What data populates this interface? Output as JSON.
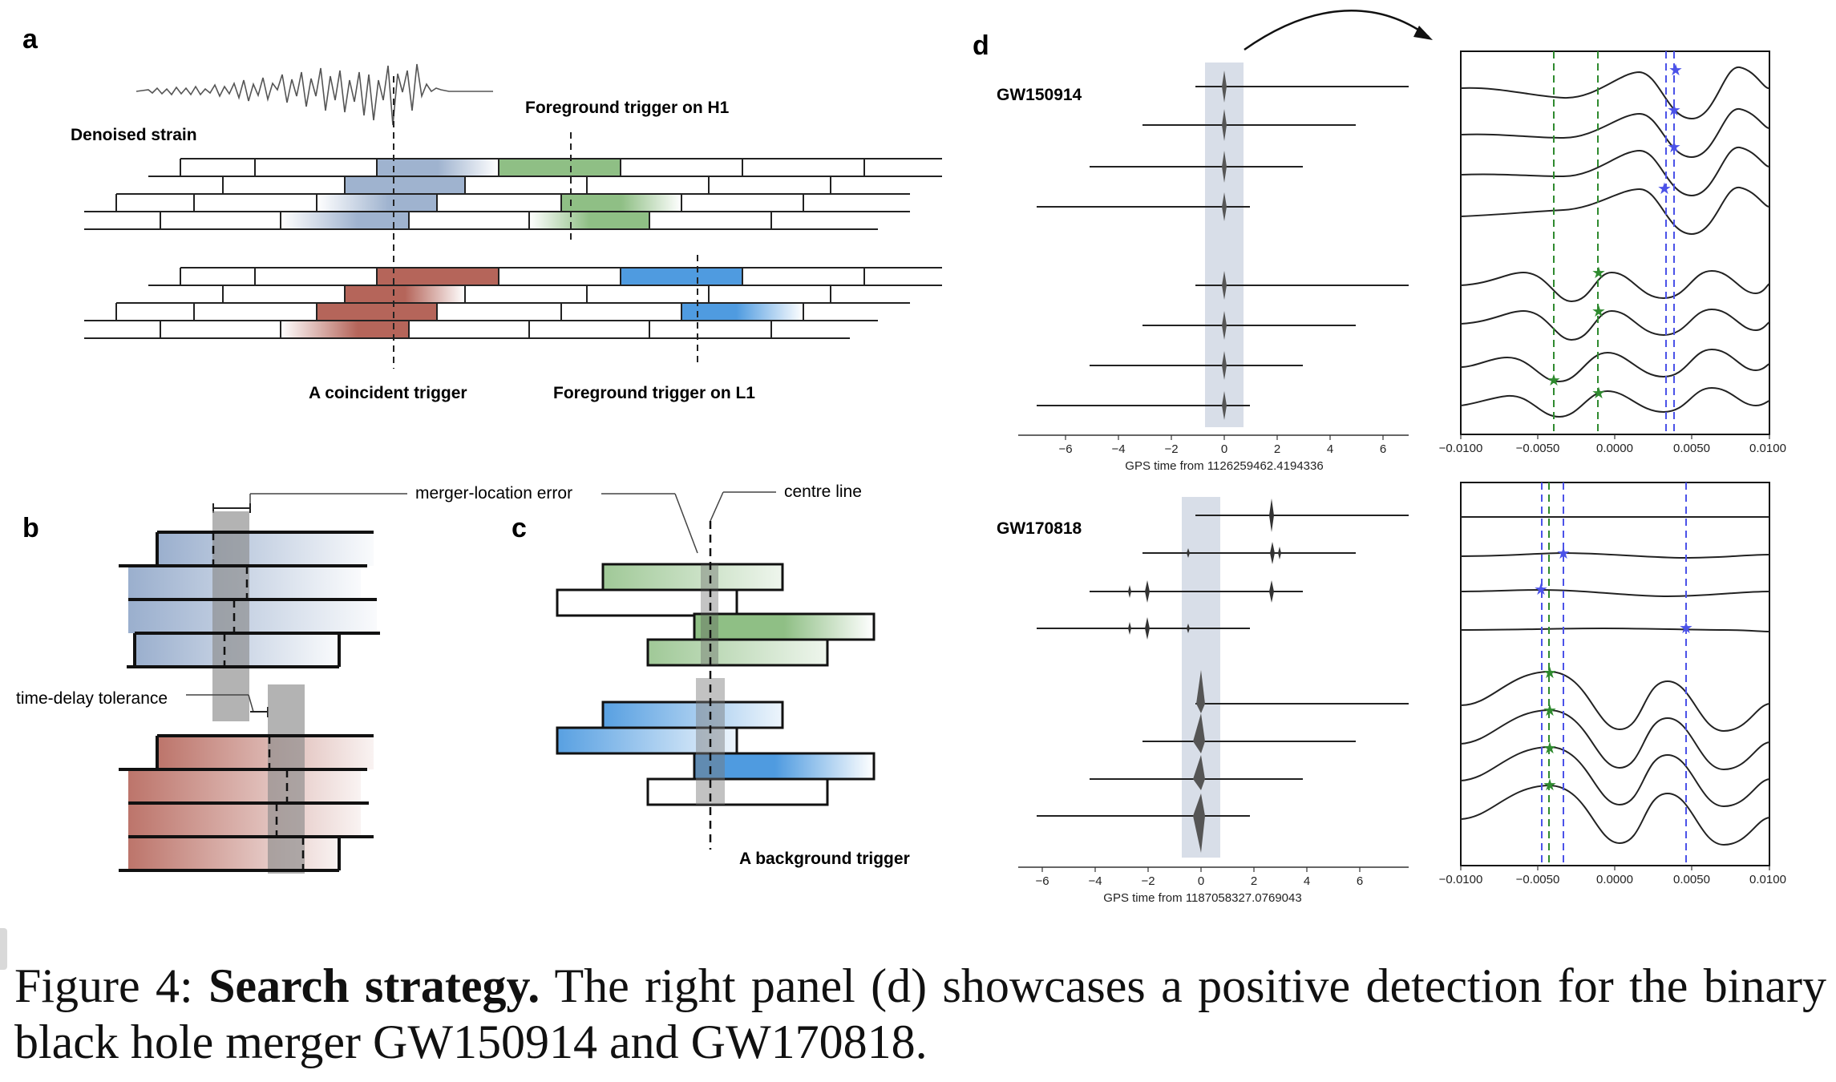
{
  "panels": {
    "a": {
      "letter": "a",
      "denoised_strain": "Denoised strain",
      "foreground_h1": "Foreground trigger on H1",
      "coincident": "A coincident trigger",
      "foreground_l1": "Foreground trigger on L1"
    },
    "b": {
      "letter": "b",
      "merger_location_error": "merger-location error",
      "time_delay_tolerance": "time-delay tolerance"
    },
    "c": {
      "letter": "c",
      "centre_line": "centre line",
      "background_trigger": "A background trigger"
    },
    "d": {
      "letter": "d",
      "events": [
        {
          "name": "GW150914",
          "xlabel": "GPS time from 1126259462.4194336"
        },
        {
          "name": "GW170818",
          "xlabel": "GPS time from 1187058327.0769043"
        }
      ],
      "left_ticks": [
        "−6",
        "−4",
        "−2",
        "0",
        "2",
        "4",
        "6"
      ],
      "right_ticks": [
        "−0.0100",
        "−0.0050",
        "0.0000",
        "0.0050",
        "0.0100"
      ]
    }
  },
  "caption": {
    "prefix": "Figure 4: ",
    "bold": "Search strategy.",
    "rest": " The right panel (d) showcases a positive detection for the binary black hole merger GW150914 and GW170818."
  },
  "colors": {
    "blue_grey": "#9fb3cf",
    "green": "#8fbf85",
    "red": "#b5655a",
    "sky": "#4f9be0",
    "marker_blue": "#4b52e8",
    "marker_green": "#2f8a2f",
    "shade": "#d8dee8"
  }
}
